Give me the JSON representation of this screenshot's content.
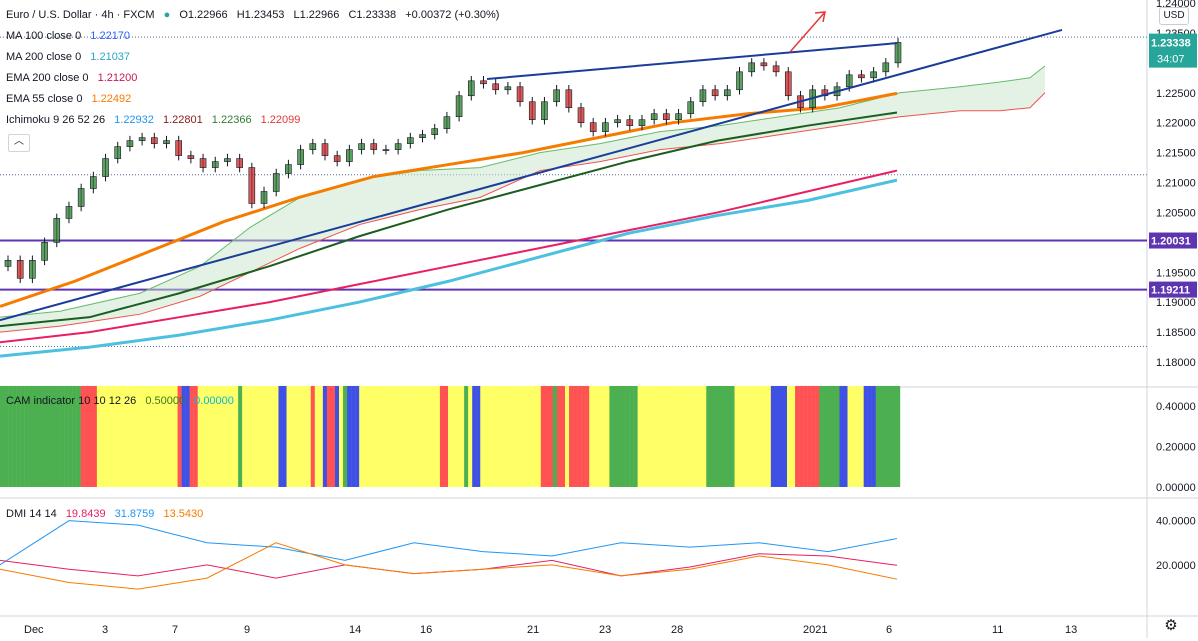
{
  "header": {
    "symbol": "Euro / U.S. Dollar · 4h · FXCM",
    "open": "O1.22966",
    "high": "H1.23453",
    "low": "L1.22966",
    "close": "C1.23338",
    "change": "+0.00372 (+0.30%)",
    "currency_button": "USD"
  },
  "indicator_legends": [
    {
      "label": "MA 100 close 0",
      "value": "1.22170",
      "color": "#2962ff"
    },
    {
      "label": "MA 200 close 0",
      "value": "1.21037",
      "color": "#4bc0e0"
    },
    {
      "label": "EMA 200 close 0",
      "value": "1.21200",
      "color": "#c2185b"
    },
    {
      "label": "EMA 55 close 0",
      "value": "1.22492",
      "color": "#f57c00"
    }
  ],
  "ichimoku": {
    "label": "Ichimoku 9 26 52 26",
    "values": [
      "1.22932",
      "1.22801",
      "1.22366",
      "1.22099"
    ],
    "colors": [
      "#2196f3",
      "#8b1a1a",
      "#2e7d32",
      "#e53935"
    ]
  },
  "cam_indicator": {
    "label": "CAM indicator 10 10 12 26",
    "values": [
      "0.50000",
      "0.00000"
    ],
    "colors": [
      "#5b9c2f",
      "#00c8c8"
    ]
  },
  "dmi": {
    "label": "DMI 14 14",
    "values": [
      "19.8439",
      "31.8759",
      "13.5430"
    ],
    "colors": [
      "#e91e63",
      "#2196f3",
      "#f57c00"
    ]
  },
  "price_axis": {
    "ticks": [
      "1.24000",
      "1.23500",
      "1.23000",
      "1.22500",
      "1.22000",
      "1.21500",
      "1.21000",
      "1.20500",
      "1.20000",
      "1.19500",
      "1.19000",
      "1.18500",
      "1.18000"
    ],
    "current_price": "1.23338",
    "countdown": "34:07",
    "level_labels": [
      "1.20031",
      "1.19211"
    ],
    "current_color": "#26a69a",
    "level_color": "#5e35b1"
  },
  "cam_axis": {
    "ticks": [
      "0.40000",
      "0.20000",
      "0.00000"
    ]
  },
  "dmi_axis": {
    "ticks": [
      "40.0000",
      "20.0000"
    ]
  },
  "time_axis": {
    "ticks": [
      "Dec",
      "3",
      "7",
      "9",
      "14",
      "16",
      "21",
      "23",
      "28",
      "2021",
      "6",
      "11",
      "13"
    ]
  },
  "chart_data": {
    "type": "line",
    "title": "Euro / U.S. Dollar · 4h · FXCM",
    "y_range": [
      1.176,
      1.2405
    ],
    "horizontal_levels": [
      1.20031,
      1.19211
    ],
    "dotted_levels": [
      1.2343,
      1.2113,
      1.1826
    ],
    "candles_close_approx": [
      1.197,
      1.194,
      1.197,
      1.2,
      1.204,
      1.206,
      1.209,
      1.211,
      1.214,
      1.216,
      1.217,
      1.2175,
      1.2165,
      1.217,
      1.2145,
      1.214,
      1.2125,
      1.2135,
      1.214,
      1.2125,
      1.2065,
      1.2085,
      1.2115,
      1.213,
      1.2155,
      1.2165,
      1.2145,
      1.2135,
      1.2155,
      1.2165,
      1.2155,
      1.2155,
      1.2165,
      1.2175,
      1.218,
      1.219,
      1.221,
      1.2245,
      1.227,
      1.2265,
      1.2255,
      1.226,
      1.2235,
      1.2205,
      1.2235,
      1.2255,
      1.2225,
      1.22,
      1.2185,
      1.22,
      1.2205,
      1.2195,
      1.2205,
      1.2215,
      1.2205,
      1.2215,
      1.2235,
      1.2255,
      1.2245,
      1.2255,
      1.2285,
      1.23,
      1.2295,
      1.2285,
      1.2245,
      1.2225,
      1.2255,
      1.2245,
      1.226,
      1.228,
      1.2275,
      1.2285,
      1.23,
      1.2334
    ],
    "series": [
      {
        "name": "EMA 55 close 0",
        "values_approx": [
          1.1893,
          1.1935,
          1.1985,
          1.2035,
          1.2075,
          1.211,
          1.213,
          1.215,
          1.2175,
          1.22,
          1.2215,
          1.2225,
          1.2249
        ]
      },
      {
        "name": "EMA 200 close 0",
        "values_approx": [
          1.1833,
          1.185,
          1.1875,
          1.19,
          1.193,
          1.196,
          1.199,
          1.202,
          1.205,
          1.2085,
          1.212
        ]
      },
      {
        "name": "MA 200 close 0",
        "values_approx": [
          1.181,
          1.1825,
          1.1845,
          1.187,
          1.19,
          1.1935,
          1.1975,
          1.2015,
          1.2045,
          1.207,
          1.2104
        ]
      },
      {
        "name": "MA 100 close 0",
        "values_approx": [
          1.186,
          1.1875,
          1.1915,
          1.196,
          1.201,
          1.2055,
          1.2095,
          1.2135,
          1.217,
          1.2195,
          1.2217
        ]
      }
    ],
    "trendlines": [
      {
        "from": [
          1.187,
          "Dec"
        ],
        "to": [
          1.2355,
          "13"
        ]
      },
      {
        "from": [
          1.2273,
          "18"
        ],
        "to": [
          1.2333,
          "6"
        ]
      }
    ],
    "cam_panel": {
      "y_range": [
        -0.01,
        0.48
      ],
      "bar_value": 0.5,
      "colors_sequence_note": "green/yellow/red/blue bars"
    },
    "dmi_panel": {
      "y_range": [
        0,
        48
      ],
      "plus_di_approx": [
        22,
        18,
        15,
        20,
        14,
        20,
        16,
        18,
        22,
        15,
        19,
        25,
        24,
        19.8
      ],
      "minus_di_approx": [
        20,
        40,
        38,
        30,
        28,
        22,
        30,
        26,
        24,
        30,
        28,
        30,
        26,
        31.9
      ],
      "adx_approx": [
        18,
        12,
        9,
        14,
        30,
        20,
        16,
        18,
        20,
        15,
        18,
        24,
        20,
        13.5
      ]
    }
  }
}
